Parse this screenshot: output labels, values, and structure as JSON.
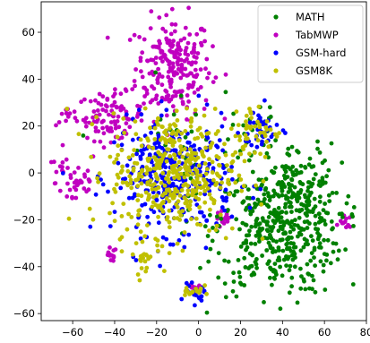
{
  "chart_data": {
    "type": "scatter",
    "title": "",
    "xlabel": "",
    "ylabel": "",
    "xlim": [
      -75,
      80
    ],
    "ylim": [
      -63,
      73
    ],
    "xticks": [
      -60,
      -40,
      -20,
      0,
      20,
      40,
      60,
      80
    ],
    "yticks": [
      -60,
      -40,
      -20,
      0,
      20,
      40,
      60
    ],
    "xtick_labels": [
      "−60",
      "−40",
      "−20",
      "0",
      "20",
      "40",
      "60",
      "80"
    ],
    "ytick_labels": [
      "−60",
      "−40",
      "−20",
      "0",
      "20",
      "40",
      "60"
    ],
    "grid": false,
    "legend_position": "top-right",
    "series": [
      {
        "name": "MATH",
        "color": "#008000",
        "clusters": [
          {
            "cx": 38,
            "cy": -24,
            "sx": 15,
            "sy": 14,
            "n": 420
          },
          {
            "cx": 50,
            "cy": -8,
            "sx": 8,
            "sy": 10,
            "n": 90
          },
          {
            "cx": 28,
            "cy": 18,
            "sx": 6,
            "sy": 6,
            "n": 25
          },
          {
            "cx": -10,
            "cy": 10,
            "sx": 15,
            "sy": 15,
            "n": 35
          }
        ]
      },
      {
        "name": "TabMWP",
        "color": "#c000c0",
        "clusters": [
          {
            "cx": -12,
            "cy": 45,
            "sx": 9,
            "sy": 11,
            "n": 230
          },
          {
            "cx": -42,
            "cy": 24,
            "sx": 8,
            "sy": 5,
            "n": 95
          },
          {
            "cx": -62,
            "cy": 24,
            "sx": 3,
            "sy": 2,
            "n": 10
          },
          {
            "cx": -58,
            "cy": -4,
            "sx": 5,
            "sy": 6,
            "n": 32
          },
          {
            "cx": -63,
            "cy": 2,
            "sx": 4,
            "sy": 3,
            "n": 8
          },
          {
            "cx": -42,
            "cy": -35,
            "sx": 1.5,
            "sy": 1.5,
            "n": 12
          },
          {
            "cx": -2,
            "cy": -50,
            "sx": 2,
            "sy": 1.5,
            "n": 12
          },
          {
            "cx": 12,
            "cy": -20,
            "sx": 2,
            "sy": 2,
            "n": 14
          },
          {
            "cx": 70,
            "cy": -21,
            "sx": 1.5,
            "sy": 1.3,
            "n": 12
          },
          {
            "cx": -70,
            "cy": 5,
            "sx": 1,
            "sy": 1,
            "n": 2
          }
        ]
      },
      {
        "name": "GSM-hard",
        "color": "#0000ff",
        "clusters": [
          {
            "cx": -12,
            "cy": -2,
            "sx": 14,
            "sy": 12,
            "n": 330
          },
          {
            "cx": 30,
            "cy": 18,
            "sx": 5,
            "sy": 5,
            "n": 40
          },
          {
            "cx": -2,
            "cy": -52,
            "sx": 2.5,
            "sy": 2,
            "n": 18
          }
        ]
      },
      {
        "name": "GSM8K",
        "color": "#c0c000",
        "clusters": [
          {
            "cx": -12,
            "cy": 0,
            "sx": 15,
            "sy": 13,
            "n": 420
          },
          {
            "cx": 28,
            "cy": 18,
            "sx": 6,
            "sy": 6,
            "n": 45
          },
          {
            "cx": -3,
            "cy": -50,
            "sx": 2.5,
            "sy": 2,
            "n": 15
          },
          {
            "cx": -25,
            "cy": -35,
            "sx": 5,
            "sy": 4,
            "n": 25
          }
        ]
      }
    ]
  }
}
